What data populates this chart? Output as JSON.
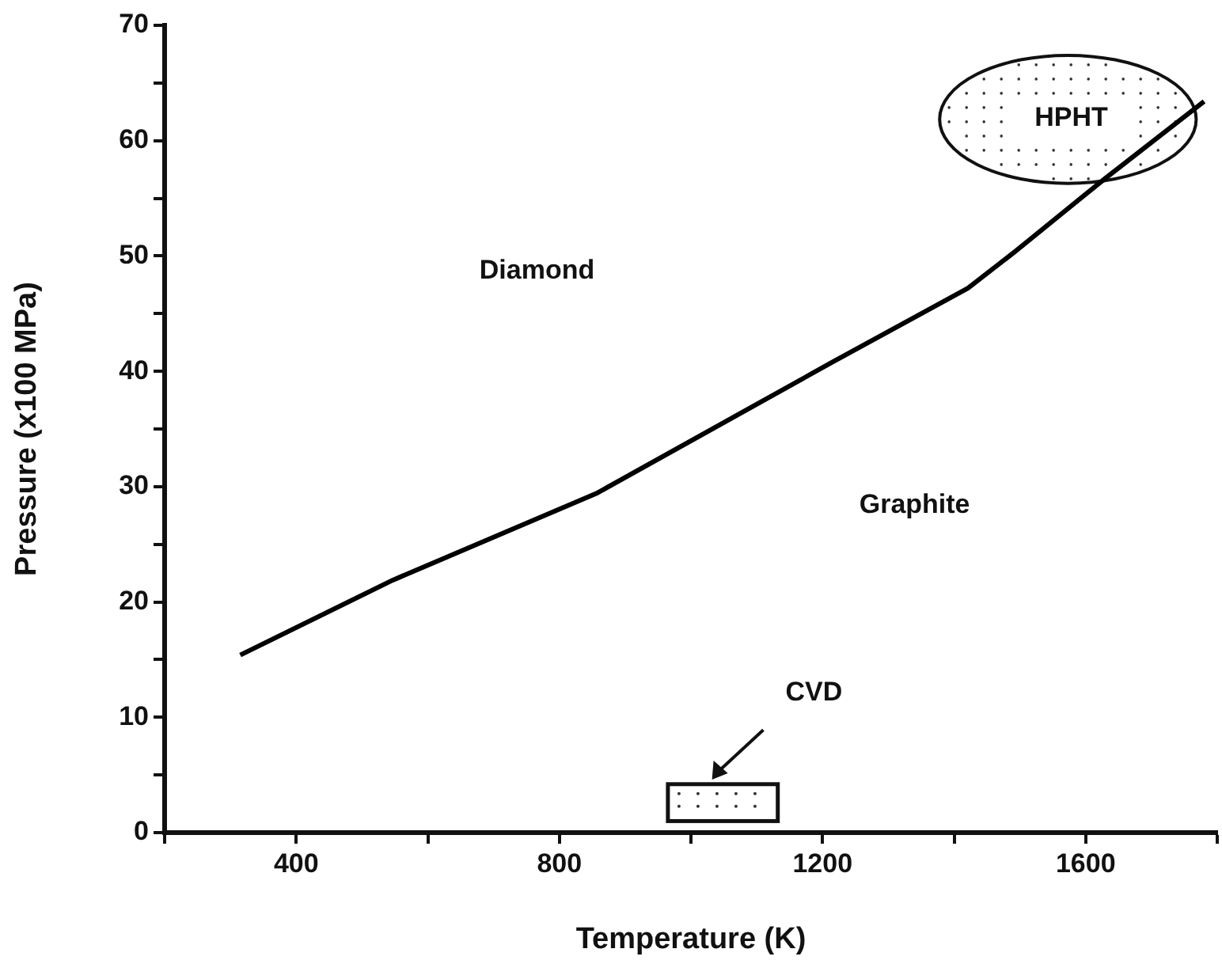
{
  "chart_data": {
    "type": "line",
    "xlabel": "Temperature (K)",
    "ylabel": "Pressure (x100 MPa)",
    "x": [
      315,
      547,
      856,
      1212,
      1421,
      1493,
      1629,
      1780
    ],
    "series": [
      {
        "color": "#000000",
        "values": [
          15.4,
          21.9,
          29.4,
          40.7,
          47.2,
          50.4,
          56.7,
          63.4
        ]
      }
    ],
    "xlim": [
      200,
      1800
    ],
    "xticks": [
      {
        "value": 200,
        "label": null
      },
      400,
      {
        "value": 600,
        "label": null
      },
      800,
      {
        "value": 1000,
        "label": null
      },
      1200,
      {
        "value": 1400,
        "label": null
      },
      1600,
      {
        "value": 1800,
        "label": null
      }
    ],
    "ylim": [
      0,
      70
    ],
    "yticks": [
      0,
      {
        "value": 5,
        "label": null
      },
      10,
      {
        "value": 15,
        "label": null
      },
      20,
      {
        "value": 25,
        "label": null
      },
      30,
      {
        "value": 35,
        "label": null
      },
      40,
      {
        "value": 45,
        "label": null
      },
      50,
      {
        "value": 55,
        "label": null
      },
      60,
      {
        "value": 65,
        "label": null
      },
      70
    ],
    "annotations": [
      "Diamond",
      "Graphite",
      "HPHT",
      "CVD"
    ],
    "grid": false,
    "legend": false,
    "marker": "none",
    "line_style": "solid"
  }
}
